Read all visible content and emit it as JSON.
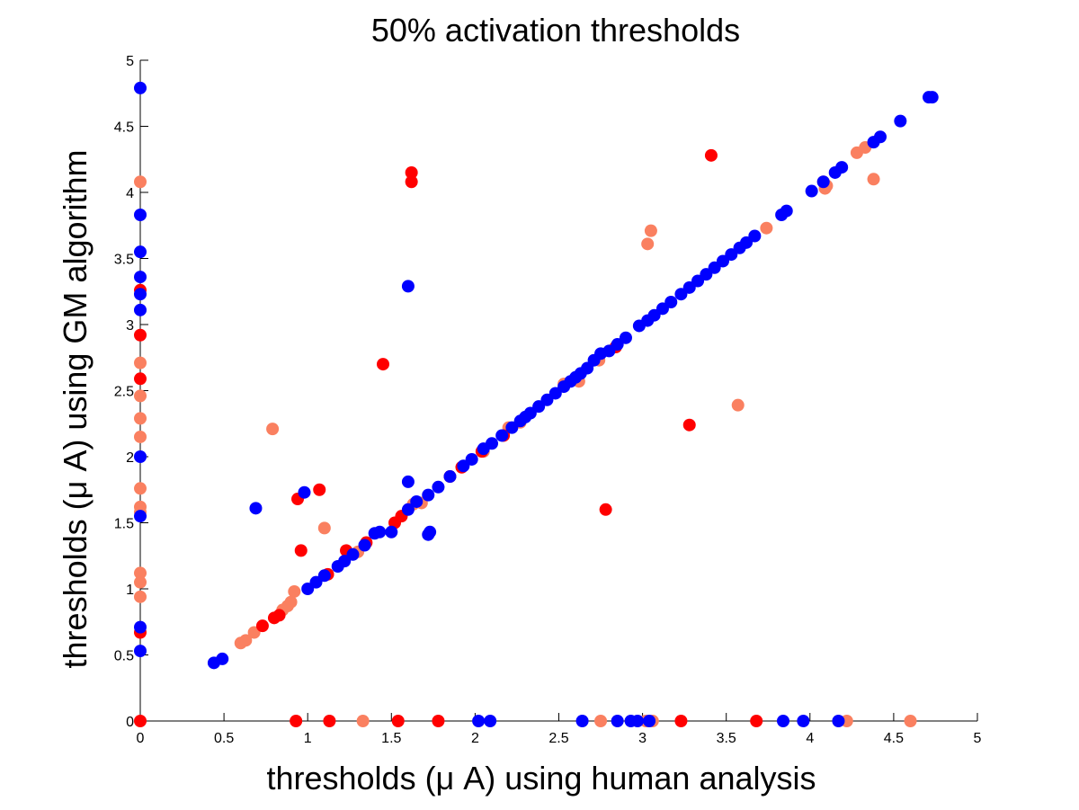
{
  "chart_data": {
    "type": "scatter",
    "title": "50% activation thresholds",
    "xlabel": "thresholds (μ A) using human analysis",
    "ylabel": "thresholds (μ A) using GM algorithm",
    "xlim": [
      0,
      5
    ],
    "ylim": [
      0,
      5
    ],
    "xticks": [
      "0",
      "0.5",
      "1",
      "1.5",
      "2",
      "2.5",
      "3",
      "3.5",
      "4",
      "4.5",
      "5"
    ],
    "yticks": [
      "0",
      "0.5",
      "1",
      "1.5",
      "2",
      "2.5",
      "3",
      "3.5",
      "4",
      "4.5",
      "5"
    ],
    "grid": false,
    "series": [
      {
        "color": "#0000ff",
        "points": [
          [
            0,
            4.79
          ],
          [
            0,
            3.83
          ],
          [
            0,
            3.55
          ],
          [
            0,
            3.36
          ],
          [
            0,
            3.23
          ],
          [
            0,
            3.11
          ],
          [
            0,
            2.0
          ],
          [
            0,
            1.55
          ],
          [
            0,
            0.71
          ],
          [
            0,
            0.53
          ],
          [
            2.02,
            0
          ],
          [
            2.09,
            0
          ],
          [
            2.64,
            0
          ],
          [
            2.85,
            0
          ],
          [
            2.93,
            0
          ],
          [
            2.97,
            0
          ],
          [
            3.04,
            0
          ],
          [
            3.84,
            0
          ],
          [
            3.96,
            0
          ],
          [
            4.17,
            0
          ],
          [
            0.69,
            1.61
          ],
          [
            0.98,
            1.73
          ],
          [
            1.6,
            3.29
          ],
          [
            1.6,
            1.81
          ],
          [
            1.72,
            1.41
          ],
          [
            1.73,
            1.43
          ],
          [
            0.44,
            0.44
          ],
          [
            0.49,
            0.47
          ],
          [
            1.0,
            1.0
          ],
          [
            1.05,
            1.05
          ],
          [
            1.1,
            1.1
          ],
          [
            1.18,
            1.17
          ],
          [
            1.22,
            1.21
          ],
          [
            1.27,
            1.26
          ],
          [
            1.34,
            1.33
          ],
          [
            1.4,
            1.42
          ],
          [
            1.43,
            1.43
          ],
          [
            1.5,
            1.43
          ],
          [
            1.6,
            1.6
          ],
          [
            1.65,
            1.66
          ],
          [
            1.72,
            1.71
          ],
          [
            1.78,
            1.77
          ],
          [
            1.85,
            1.85
          ],
          [
            1.93,
            1.93
          ],
          [
            1.98,
            1.98
          ],
          [
            2.05,
            2.06
          ],
          [
            2.1,
            2.1
          ],
          [
            2.16,
            2.16
          ],
          [
            2.22,
            2.22
          ],
          [
            2.27,
            2.27
          ],
          [
            2.3,
            2.3
          ],
          [
            2.33,
            2.33
          ],
          [
            2.38,
            2.38
          ],
          [
            2.43,
            2.43
          ],
          [
            2.48,
            2.48
          ],
          [
            2.53,
            2.53
          ],
          [
            2.57,
            2.57
          ],
          [
            2.6,
            2.6
          ],
          [
            2.63,
            2.63
          ],
          [
            2.67,
            2.67
          ],
          [
            2.71,
            2.73
          ],
          [
            2.75,
            2.78
          ],
          [
            2.8,
            2.8
          ],
          [
            2.85,
            2.85
          ],
          [
            2.9,
            2.9
          ],
          [
            2.98,
            2.99
          ],
          [
            3.03,
            3.03
          ],
          [
            3.07,
            3.07
          ],
          [
            3.12,
            3.12
          ],
          [
            3.17,
            3.17
          ],
          [
            3.23,
            3.23
          ],
          [
            3.28,
            3.28
          ],
          [
            3.33,
            3.33
          ],
          [
            3.38,
            3.38
          ],
          [
            3.43,
            3.43
          ],
          [
            3.48,
            3.48
          ],
          [
            3.53,
            3.53
          ],
          [
            3.58,
            3.58
          ],
          [
            3.62,
            3.62
          ],
          [
            3.67,
            3.67
          ],
          [
            3.83,
            3.83
          ],
          [
            3.86,
            3.86
          ],
          [
            4.01,
            4.01
          ],
          [
            4.08,
            4.08
          ],
          [
            4.15,
            4.15
          ],
          [
            4.19,
            4.19
          ],
          [
            4.38,
            4.38
          ],
          [
            4.42,
            4.42
          ],
          [
            4.54,
            4.54
          ],
          [
            4.71,
            4.72
          ],
          [
            4.73,
            4.72
          ]
        ]
      },
      {
        "color": "#ff0000",
        "points": [
          [
            0,
            3.26
          ],
          [
            0,
            2.92
          ],
          [
            0,
            2.59
          ],
          [
            0,
            0.67
          ],
          [
            0,
            0
          ],
          [
            0.93,
            0
          ],
          [
            1.13,
            0
          ],
          [
            1.54,
            0
          ],
          [
            1.78,
            0
          ],
          [
            3.23,
            0
          ],
          [
            3.68,
            0
          ],
          [
            1.62,
            4.15
          ],
          [
            1.62,
            4.08
          ],
          [
            3.41,
            4.28
          ],
          [
            1.45,
            2.7
          ],
          [
            3.28,
            2.24
          ],
          [
            2.78,
            1.6
          ],
          [
            0.94,
            1.68
          ],
          [
            1.07,
            1.75
          ],
          [
            0.96,
            1.29
          ],
          [
            1.23,
            1.29
          ],
          [
            1.12,
            1.11
          ],
          [
            1.35,
            1.35
          ],
          [
            0.73,
            0.72
          ],
          [
            0.8,
            0.78
          ],
          [
            0.83,
            0.8
          ],
          [
            1.52,
            1.5
          ],
          [
            1.56,
            1.55
          ],
          [
            1.85,
            1.85
          ],
          [
            1.92,
            1.92
          ],
          [
            2.04,
            2.04
          ],
          [
            2.17,
            2.16
          ],
          [
            2.84,
            2.83
          ]
        ]
      },
      {
        "color": "#fa8060",
        "points": [
          [
            0,
            4.08
          ],
          [
            0,
            2.71
          ],
          [
            0,
            2.46
          ],
          [
            0,
            2.29
          ],
          [
            0,
            2.15
          ],
          [
            0,
            1.76
          ],
          [
            0,
            1.62
          ],
          [
            0,
            1.58
          ],
          [
            0,
            1.12
          ],
          [
            0,
            1.05
          ],
          [
            0,
            0.94
          ],
          [
            1.33,
            0
          ],
          [
            2.75,
            0
          ],
          [
            3.02,
            0
          ],
          [
            3.06,
            0
          ],
          [
            4.22,
            0
          ],
          [
            4.6,
            0
          ],
          [
            0.79,
            2.21
          ],
          [
            1.1,
            1.46
          ],
          [
            3.03,
            3.61
          ],
          [
            3.05,
            3.71
          ],
          [
            3.57,
            2.39
          ],
          [
            4.38,
            4.1
          ],
          [
            0.6,
            0.59
          ],
          [
            0.63,
            0.61
          ],
          [
            0.68,
            0.67
          ],
          [
            0.85,
            0.84
          ],
          [
            0.88,
            0.87
          ],
          [
            0.9,
            0.9
          ],
          [
            0.92,
            0.98
          ],
          [
            1.3,
            1.28
          ],
          [
            1.63,
            1.64
          ],
          [
            1.68,
            1.65
          ],
          [
            2.05,
            2.04
          ],
          [
            2.2,
            2.22
          ],
          [
            2.27,
            2.26
          ],
          [
            2.53,
            2.55
          ],
          [
            2.62,
            2.57
          ],
          [
            2.74,
            2.73
          ],
          [
            3.74,
            3.73
          ],
          [
            4.09,
            4.03
          ],
          [
            4.08,
            4.08
          ],
          [
            4.1,
            4.05
          ],
          [
            4.28,
            4.3
          ],
          [
            4.33,
            4.34
          ]
        ]
      }
    ]
  }
}
